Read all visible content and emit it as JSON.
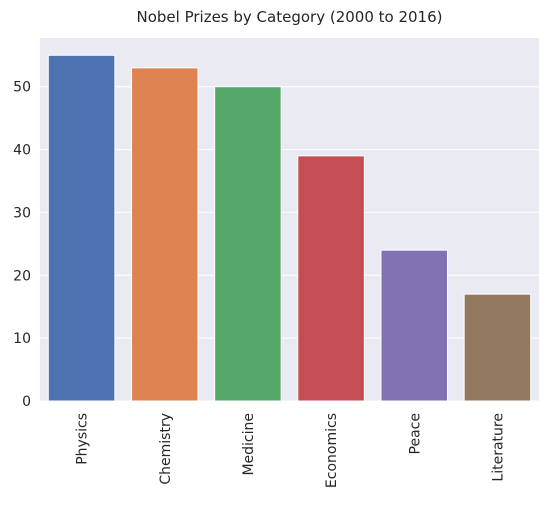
{
  "chart_data": {
    "type": "bar",
    "title": "Nobel Prizes by Category (2000 to 2016)",
    "xlabel": "",
    "ylabel": "",
    "categories": [
      "Physics",
      "Chemistry",
      "Medicine",
      "Economics",
      "Peace",
      "Literature"
    ],
    "values": [
      55,
      53,
      50,
      39,
      24,
      17
    ],
    "colors": [
      "#4c72b0",
      "#dd8452",
      "#55a868",
      "#c44e52",
      "#8172b3",
      "#937860"
    ],
    "ylim": [
      0,
      57.75
    ],
    "yticks": [
      0,
      10,
      20,
      30,
      40,
      50
    ],
    "grid": true,
    "background": "#eaeaf2",
    "grid_color": "#ffffff"
  }
}
